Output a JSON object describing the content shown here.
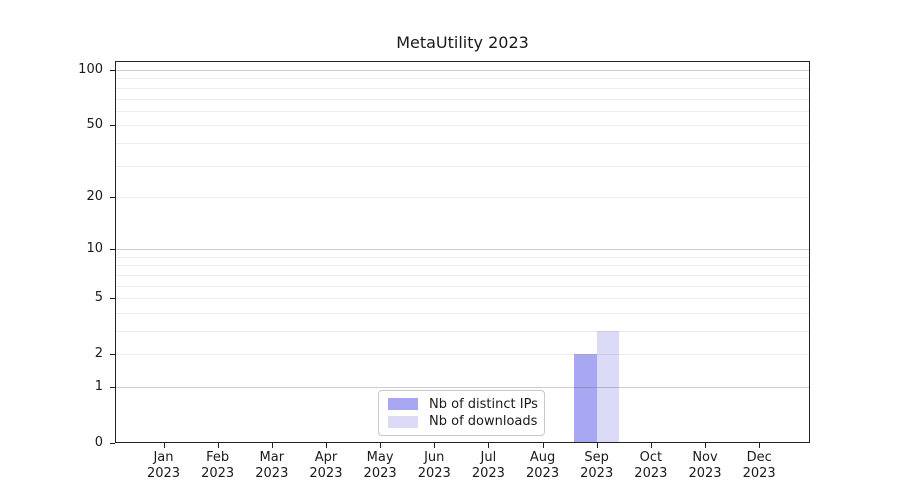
{
  "chart_data": {
    "type": "bar",
    "title": "MetaUtility 2023",
    "categories": [
      "Jan\n2023",
      "Feb\n2023",
      "Mar\n2023",
      "Apr\n2023",
      "May\n2023",
      "Jun\n2023",
      "Jul\n2023",
      "Aug\n2023",
      "Sep\n2023",
      "Oct\n2023",
      "Nov\n2023",
      "Dec\n2023"
    ],
    "series": [
      {
        "name": "Nb of distinct IPs",
        "color": "#a8a8f2",
        "values": [
          0,
          0,
          0,
          0,
          0,
          0,
          0,
          0,
          2,
          0,
          0,
          0
        ]
      },
      {
        "name": "Nb of downloads",
        "color": "#dbdbf8",
        "values": [
          0,
          0,
          0,
          0,
          0,
          0,
          0,
          0,
          3,
          0,
          0,
          0
        ]
      }
    ],
    "xlabel": "",
    "ylabel": "",
    "yscale": "log1p",
    "yticks": [
      0,
      1,
      2,
      5,
      10,
      20,
      50,
      100
    ],
    "ylim": [
      0,
      112
    ],
    "gridlines": {
      "major": [
        1,
        10,
        100
      ],
      "minor": [
        2,
        3,
        4,
        5,
        6,
        7,
        8,
        9,
        20,
        30,
        40,
        50,
        60,
        70,
        80,
        90
      ]
    },
    "legend": {
      "position": "inside-bottom-center",
      "entries": [
        "Nb of distinct IPs",
        "Nb of downloads"
      ]
    }
  }
}
